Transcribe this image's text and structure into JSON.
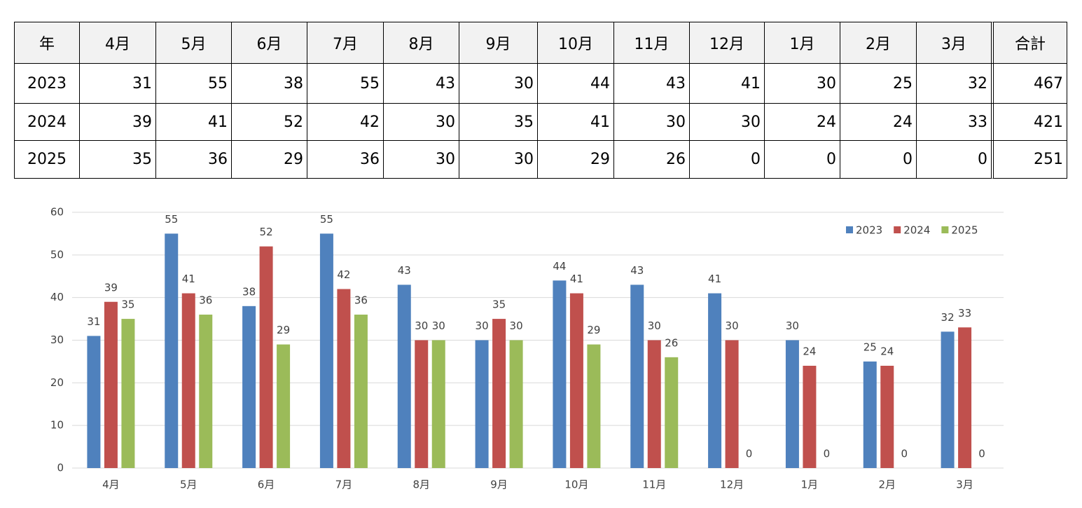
{
  "table": {
    "header": [
      "年",
      "4月",
      "5月",
      "6月",
      "7月",
      "8月",
      "9月",
      "10月",
      "11月",
      "12月",
      "1月",
      "2月",
      "3月",
      "合計"
    ],
    "rows": [
      [
        "2023",
        31,
        55,
        38,
        55,
        43,
        30,
        44,
        43,
        41,
        30,
        25,
        32,
        467
      ],
      [
        "2024",
        39,
        41,
        52,
        42,
        30,
        35,
        41,
        30,
        30,
        24,
        24,
        33,
        421
      ],
      [
        "2025",
        35,
        36,
        29,
        36,
        30,
        30,
        29,
        26,
        0,
        0,
        0,
        0,
        251
      ]
    ]
  },
  "chart_data": {
    "type": "bar",
    "categories": [
      "4月",
      "5月",
      "6月",
      "7月",
      "8月",
      "9月",
      "10月",
      "11月",
      "12月",
      "1月",
      "2月",
      "3月"
    ],
    "series": [
      {
        "name": "2023",
        "color": "#4f81bd",
        "values": [
          31,
          55,
          38,
          55,
          43,
          30,
          44,
          43,
          41,
          30,
          25,
          32
        ]
      },
      {
        "name": "2024",
        "color": "#c0504d",
        "values": [
          39,
          41,
          52,
          42,
          30,
          35,
          41,
          30,
          30,
          24,
          24,
          33
        ]
      },
      {
        "name": "2025",
        "color": "#9bbb59",
        "values": [
          35,
          36,
          29,
          36,
          30,
          30,
          29,
          26,
          0,
          0,
          0,
          0
        ]
      }
    ],
    "ylim": [
      0,
      60
    ],
    "yticks": [
      0,
      10,
      20,
      30,
      40,
      50,
      60
    ],
    "grid": true,
    "legend": "top-right"
  }
}
